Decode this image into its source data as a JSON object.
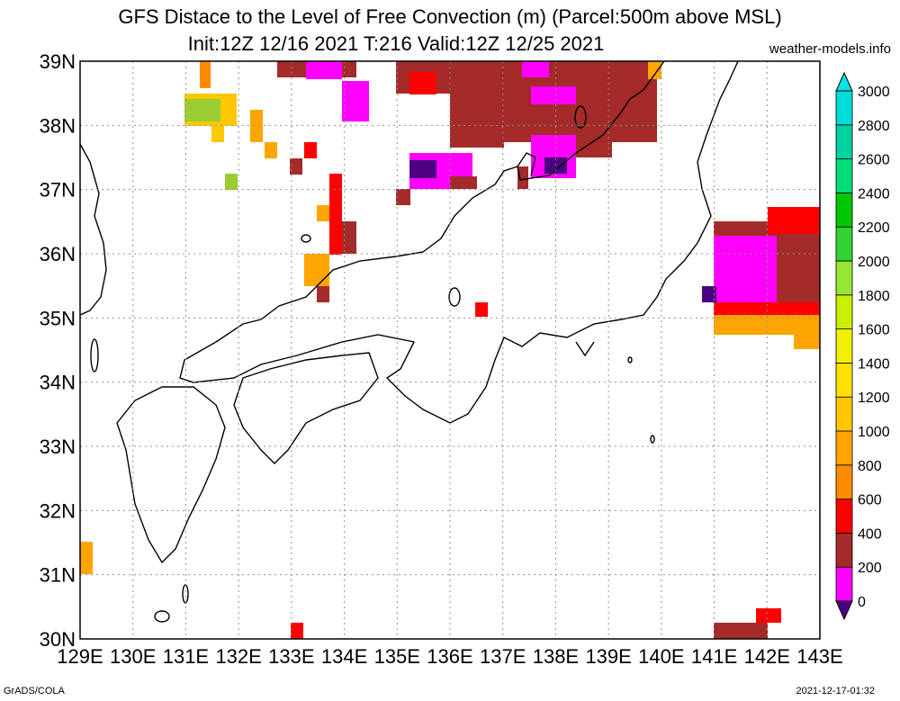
{
  "header": {
    "title_line1": "GFS Distace to the Level of Free Convection (m) (Parcel:500m above MSL)",
    "title_line2": "Init:12Z 12/16 2021 T:216 Valid:12Z 12/25 2021",
    "site": "weather-models.info"
  },
  "footer": {
    "left": "GrADS/COLA",
    "right": "2021-12-17-01:32"
  },
  "map": {
    "lon_labels": [
      "129E",
      "130E",
      "131E",
      "132E",
      "133E",
      "134E",
      "135E",
      "136E",
      "137E",
      "138E",
      "139E",
      "140E",
      "141E",
      "142E",
      "143E"
    ],
    "lat_labels": [
      "39N",
      "38N",
      "37N",
      "36N",
      "35N",
      "34N",
      "33N",
      "32N",
      "31N",
      "30N"
    ],
    "grid": true
  },
  "colorbar": {
    "levels": [
      "0",
      "200",
      "400",
      "600",
      "800",
      "1000",
      "1200",
      "1400",
      "1600",
      "1800",
      "2000",
      "2200",
      "2400",
      "2600",
      "2800",
      "3000"
    ],
    "colors": [
      "#4b0082",
      "#ff00ff",
      "#a52a2a",
      "#ff0000",
      "#ff8c00",
      "#ffa500",
      "#ffc800",
      "#ffe000",
      "#f0f000",
      "#c8f000",
      "#96e632",
      "#32d232",
      "#00c800",
      "#00dc78",
      "#00d2a0",
      "#00dcdc",
      "#00e6e6"
    ]
  },
  "colors": {
    "purple": "#4b0082",
    "magenta": "#ff00ff",
    "brown": "#a52a2a",
    "red": "#ff0000",
    "orange": "#ff8c00",
    "amber": "#ffa500",
    "yellow": "#ffd700",
    "lime": "#9acd32"
  }
}
